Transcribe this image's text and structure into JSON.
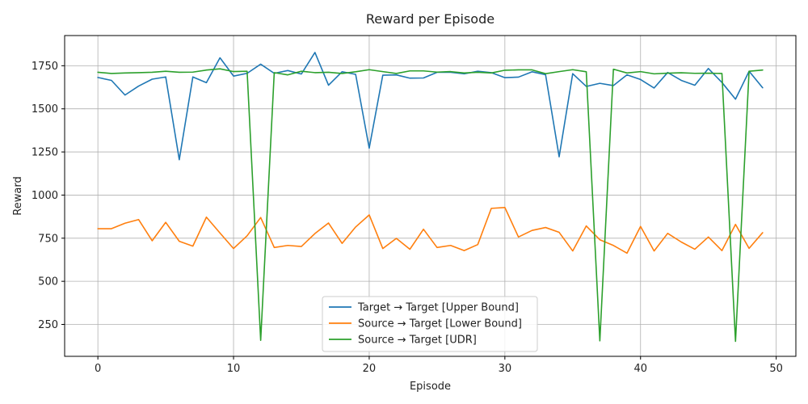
{
  "chart_data": {
    "type": "line",
    "title": "Reward per Episode",
    "xlabel": "Episode",
    "ylabel": "Reward",
    "xlim": [
      -2.45,
      51.45
    ],
    "ylim": [
      65,
      1925
    ],
    "xticks": [
      0,
      10,
      20,
      30,
      40,
      50
    ],
    "yticks": [
      250,
      500,
      750,
      1000,
      1250,
      1500,
      1750
    ],
    "grid": true,
    "legend_position": "lower-center",
    "x": [
      0,
      1,
      2,
      3,
      4,
      5,
      6,
      7,
      8,
      9,
      10,
      11,
      12,
      13,
      14,
      15,
      16,
      17,
      18,
      19,
      20,
      21,
      22,
      23,
      24,
      25,
      26,
      27,
      28,
      29,
      30,
      31,
      32,
      33,
      34,
      35,
      36,
      37,
      38,
      39,
      40,
      41,
      42,
      43,
      44,
      45,
      46,
      47,
      48,
      49
    ],
    "series": [
      {
        "name": "Target → Target [Upper Bound]",
        "color": "#1f77b4",
        "values": [
          1682,
          1665,
          1580,
          1632,
          1672,
          1685,
          1205,
          1685,
          1652,
          1796,
          1690,
          1706,
          1759,
          1706,
          1722,
          1702,
          1827,
          1637,
          1715,
          1700,
          1272,
          1695,
          1697,
          1678,
          1679,
          1712,
          1712,
          1703,
          1718,
          1710,
          1681,
          1684,
          1715,
          1698,
          1222,
          1704,
          1630,
          1648,
          1635,
          1697,
          1670,
          1621,
          1711,
          1665,
          1637,
          1734,
          1653,
          1556,
          1718,
          1622
        ]
      },
      {
        "name": "Source → Target [Lower Bound]",
        "color": "#ff7f0e",
        "values": [
          805,
          805,
          837,
          858,
          735,
          842,
          732,
          704,
          872,
          780,
          690,
          764,
          870,
          696,
          708,
          702,
          777,
          838,
          720,
          815,
          885,
          690,
          749,
          686,
          802,
          696,
          708,
          678,
          713,
          923,
          928,
          757,
          795,
          812,
          784,
          676,
          821,
          741,
          708,
          663,
          818,
          676,
          778,
          728,
          686,
          757,
          678,
          830,
          691,
          782
        ]
      },
      {
        "name": "Source → Target [UDR]",
        "color": "#2ca02c",
        "values": [
          1712,
          1705,
          1708,
          1710,
          1712,
          1718,
          1712,
          1713,
          1725,
          1732,
          1716,
          1718,
          158,
          1710,
          1697,
          1718,
          1710,
          1712,
          1705,
          1715,
          1727,
          1716,
          1705,
          1720,
          1720,
          1713,
          1716,
          1708,
          1712,
          1708,
          1724,
          1726,
          1726,
          1704,
          1716,
          1727,
          1715,
          155,
          1730,
          1708,
          1716,
          1703,
          1707,
          1709,
          1706,
          1707,
          1705,
          152,
          1718,
          1725
        ]
      }
    ]
  }
}
